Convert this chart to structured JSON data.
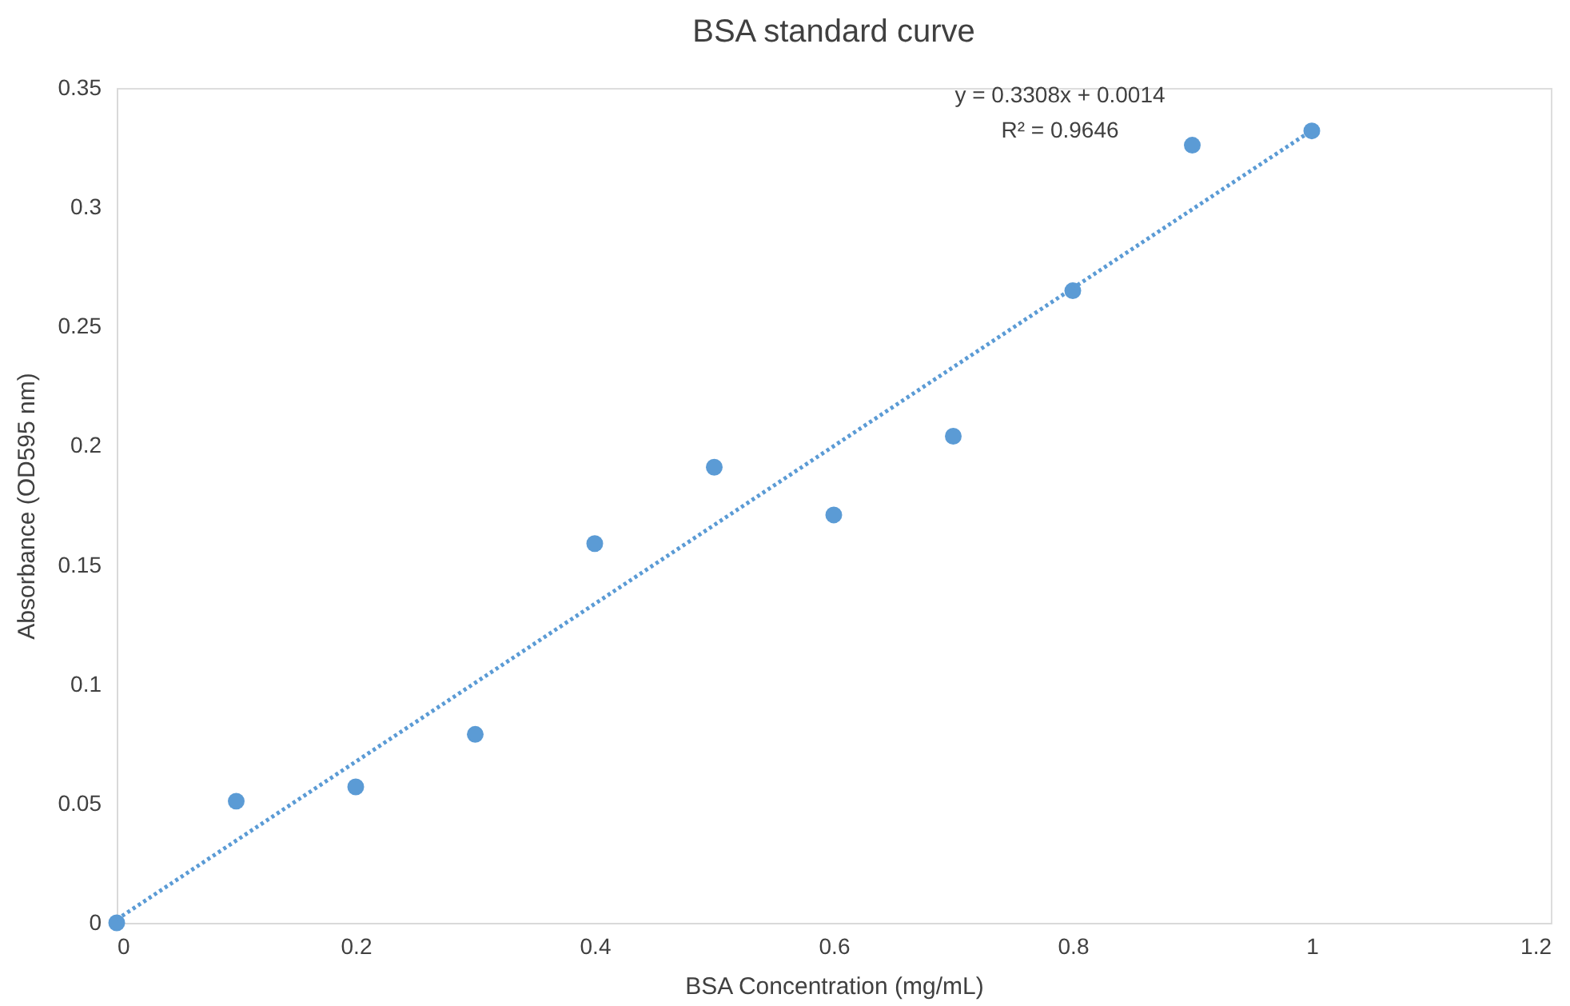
{
  "chart_data": {
    "type": "scatter",
    "title": "BSA standard curve",
    "xlabel": "BSA Concentration (mg/mL)",
    "ylabel": "Absorbance (OD595 nm)",
    "x": [
      0,
      0.1,
      0.2,
      0.3,
      0.4,
      0.5,
      0.6,
      0.7,
      0.8,
      0.9,
      1.0
    ],
    "series": [
      {
        "color": "#5b9bd5",
        "marker": "circle",
        "values": [
          0,
          0.051,
          0.057,
          0.079,
          0.159,
          0.191,
          0.171,
          0.204,
          0.265,
          0.326,
          0.332
        ]
      },
      {
        "type": "line",
        "color": "#5b9bd5",
        "line_style": "dotted",
        "x": [
          0,
          1.0
        ],
        "values": [
          0.0014,
          0.3322
        ]
      }
    ],
    "xlim": [
      0,
      1.2
    ],
    "xticks": [
      0,
      0.2,
      0.4,
      0.6,
      0.8,
      1,
      1.2
    ],
    "ylim": [
      0,
      0.35
    ],
    "yticks": [
      0,
      0.05,
      0.1,
      0.15,
      0.2,
      0.25,
      0.3,
      0.35
    ],
    "annotations": [
      "y = 0.3308x + 0.0014",
      "R² = 0.9646"
    ],
    "grid": false
  }
}
